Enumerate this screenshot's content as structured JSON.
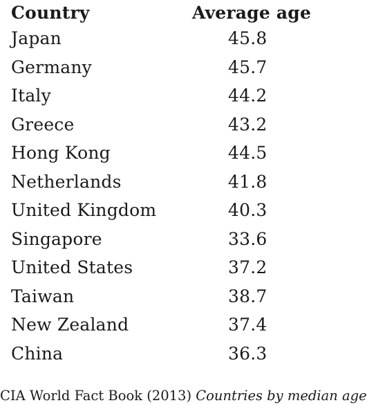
{
  "table": {
    "headers": {
      "country": "Country",
      "age": "Average age"
    },
    "rows": [
      {
        "country": "Japan",
        "age": "45.8"
      },
      {
        "country": "Germany",
        "age": "45.7"
      },
      {
        "country": "Italy",
        "age": "44.2"
      },
      {
        "country": "Greece",
        "age": "43.2"
      },
      {
        "country": "Hong Kong",
        "age": "44.5"
      },
      {
        "country": "Netherlands",
        "age": "41.8"
      },
      {
        "country": "United Kingdom",
        "age": "40.3"
      },
      {
        "country": "Singapore",
        "age": "33.6"
      },
      {
        "country": "United States",
        "age": "37.2"
      },
      {
        "country": "Taiwan",
        "age": "38.7"
      },
      {
        "country": "New Zealand",
        "age": "37.4"
      },
      {
        "country": "China",
        "age": "36.3"
      }
    ]
  },
  "source": {
    "text": "CIA World Fact Book (2013) ",
    "title": "Countries by median age"
  }
}
